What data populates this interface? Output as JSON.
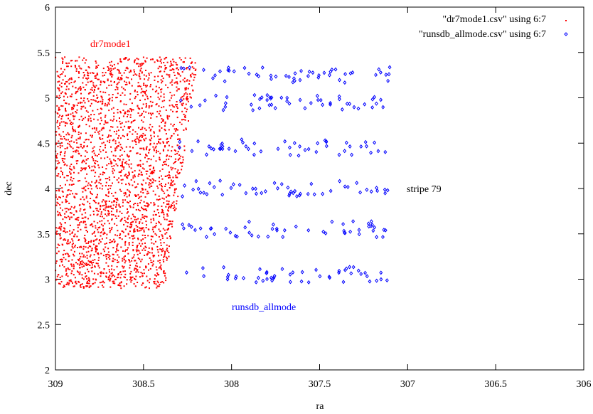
{
  "chart_data": {
    "type": "scatter",
    "xlabel": "ra",
    "ylabel": "dec",
    "xlim": [
      309,
      306
    ],
    "ylim": [
      2,
      6
    ],
    "x_reversed": true,
    "xticks": [
      309,
      308.5,
      308,
      307.5,
      307,
      306.5,
      306
    ],
    "xtick_labels": [
      "309",
      "308.5",
      "308",
      "307.5",
      "307",
      "306.5",
      "306"
    ],
    "yticks": [
      2,
      2.5,
      3,
      3.5,
      4,
      4.5,
      5,
      5.5,
      6
    ],
    "ytick_labels": [
      "2",
      "2.5",
      "3",
      "3.5",
      "4",
      "4.5",
      "5",
      "5.5",
      "6"
    ],
    "grid": false,
    "legend_position": "top-right",
    "series": [
      {
        "name": "\"dr7mode1.csv\" using 6:7",
        "color": "#ff0000",
        "marker": "dot",
        "description_region": {
          "ra_range": [
            309.0,
            308.2
          ],
          "dec_range": [
            2.9,
            5.45
          ]
        },
        "point_count_approx": 2600
      },
      {
        "name": "\"runsdb_allmode.csv\" using 6:7",
        "color": "#0000ff",
        "marker": "diamond",
        "stripes_dec": [
          3.05,
          3.55,
          4.0,
          4.45,
          4.95,
          5.25
        ],
        "ra_range": [
          308.3,
          307.1
        ],
        "point_count_approx": 300
      }
    ],
    "annotations": [
      {
        "text": "dr7mode1",
        "x": 308.83,
        "y": 5.6,
        "color": "#ff0000"
      },
      {
        "text": "runsdb_allmode",
        "x": 307.8,
        "y": 2.7,
        "color": "#0000ff"
      },
      {
        "text": "stripe 79",
        "x": 306.9,
        "y": 4.0,
        "color": "#000000"
      }
    ]
  }
}
